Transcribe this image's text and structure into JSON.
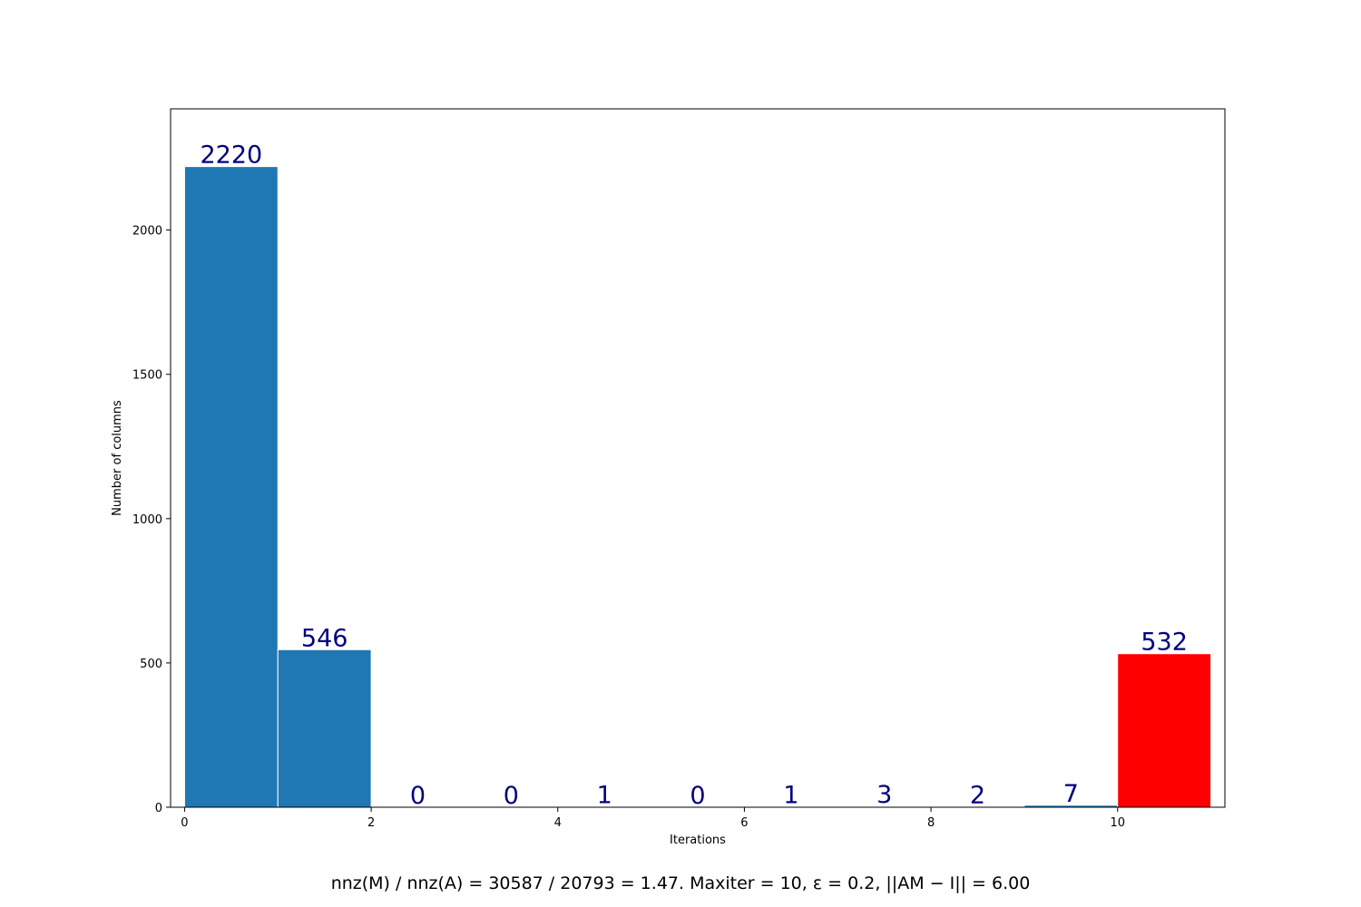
{
  "chart_data": {
    "type": "bar",
    "bins": [
      {
        "x0": 0,
        "x1": 1,
        "value": 2220,
        "label": "2220",
        "color": "#1f77b4"
      },
      {
        "x0": 1,
        "x1": 2,
        "value": 546,
        "label": "546",
        "color": "#1f77b4"
      },
      {
        "x0": 2,
        "x1": 3,
        "value": 0,
        "label": "0",
        "color": "#1f77b4"
      },
      {
        "x0": 3,
        "x1": 4,
        "value": 0,
        "label": "0",
        "color": "#1f77b4"
      },
      {
        "x0": 4,
        "x1": 5,
        "value": 1,
        "label": "1",
        "color": "#1f77b4"
      },
      {
        "x0": 5,
        "x1": 6,
        "value": 0,
        "label": "0",
        "color": "#1f77b4"
      },
      {
        "x0": 6,
        "x1": 7,
        "value": 1,
        "label": "1",
        "color": "#1f77b4"
      },
      {
        "x0": 7,
        "x1": 8,
        "value": 3,
        "label": "3",
        "color": "#1f77b4"
      },
      {
        "x0": 8,
        "x1": 9,
        "value": 2,
        "label": "2",
        "color": "#1f77b4"
      },
      {
        "x0": 9,
        "x1": 10,
        "value": 7,
        "label": "7",
        "color": "#1f77b4"
      },
      {
        "x0": 10,
        "x1": 11,
        "value": 532,
        "label": "532",
        "color": "#ff0000"
      }
    ],
    "xlabel": "Iterations",
    "ylabel": "Number of columns",
    "xlim": [
      -0.15,
      11.15
    ],
    "ylim": [
      0,
      2420
    ],
    "xticks": [
      0,
      2,
      4,
      6,
      8,
      10
    ],
    "yticks": [
      0,
      500,
      1000,
      1500,
      2000
    ],
    "grid": false,
    "label_color": "#000080",
    "caption": "nnz(M) / nnz(A) = 30587 / 20793 = 1.47. Maxiter = 10, ε = 0.2, ||AM − I|| = 6.00"
  }
}
